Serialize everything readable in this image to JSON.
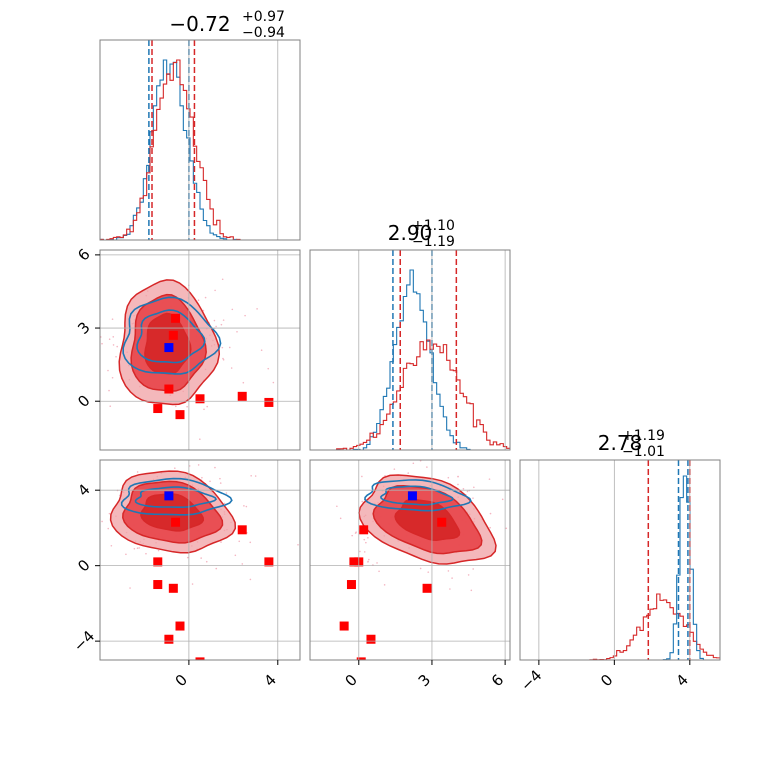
{
  "titles": {
    "p1": {
      "main": "−0.72",
      "sup": "+0.97",
      "sub": "−0.94"
    },
    "p2": {
      "main": "2.90",
      "sup": "+1.10",
      "sub": "−1.19"
    },
    "p3": {
      "main": "2.78",
      "sup": "+1.19",
      "sub": "−1.01"
    }
  },
  "chart_data": {
    "type": "corner",
    "parameters": [
      "p1",
      "p2",
      "p3"
    ],
    "colors": {
      "red": "#d62728",
      "blue": "#1f77b4",
      "marker_red": "#ff0000",
      "marker_blue": "#0000ff"
    },
    "ranges": {
      "p1": [
        -4.0,
        5.0
      ],
      "p2": [
        -2.0,
        6.2
      ],
      "p3": [
        -5.0,
        5.6
      ]
    },
    "panels": [
      {
        "id": "hist_p1",
        "type": "histogram",
        "x": "p1",
        "x_ticks": [
          0,
          4
        ],
        "red_lines": [
          -1.66,
          0.25
        ],
        "blue_lines": [
          -1.8,
          0.0
        ]
      },
      {
        "id": "scatter_p1_p2",
        "type": "contour_scatter",
        "x": "p1",
        "y": "p2",
        "x_ticks": [
          0,
          4
        ],
        "y_ticks": [
          0,
          3,
          6
        ],
        "y_tick_labels": [
          "0",
          "3",
          "6"
        ],
        "red_markers": [
          [
            -0.6,
            3.4
          ],
          [
            -0.7,
            2.7
          ],
          [
            -0.9,
            0.5
          ],
          [
            0.5,
            0.1
          ],
          [
            -1.4,
            -0.3
          ],
          [
            -0.4,
            -0.55
          ],
          [
            2.4,
            0.2
          ],
          [
            3.6,
            -0.05
          ]
        ],
        "blue_marker": [
          -0.9,
          2.2
        ],
        "red_contour_center": [
          -1.0,
          2.3
        ],
        "blue_contour_center": [
          -0.9,
          2.6
        ]
      },
      {
        "id": "hist_p2",
        "type": "histogram",
        "x": "p2",
        "x_ticks": [
          0,
          3,
          6
        ],
        "red_lines": [
          1.7,
          4.0
        ],
        "blue_lines": [
          1.4,
          3.0
        ]
      },
      {
        "id": "scatter_p1_p3",
        "type": "contour_scatter",
        "x": "p1",
        "y": "p3",
        "x_ticks": [
          0,
          4
        ],
        "x_tick_labels": [
          "0",
          "4"
        ],
        "y_ticks": [
          -4,
          0,
          4
        ],
        "y_tick_labels": [
          "−4",
          "0",
          "4"
        ],
        "red_markers": [
          [
            -0.6,
            2.3
          ],
          [
            2.4,
            1.9
          ],
          [
            3.6,
            0.2
          ],
          [
            -1.4,
            0.2
          ],
          [
            -1.4,
            -1.0
          ],
          [
            -0.7,
            -1.2
          ],
          [
            -0.4,
            -3.2
          ],
          [
            -0.9,
            -3.9
          ],
          [
            0.5,
            -5.1
          ]
        ],
        "blue_marker": [
          -0.9,
          3.7
        ],
        "red_contour_center": [
          -0.8,
          2.8
        ],
        "blue_contour_center": [
          -0.7,
          3.6
        ]
      },
      {
        "id": "scatter_p2_p3",
        "type": "contour_scatter",
        "x": "p2",
        "y": "p3",
        "x_ticks": [
          0,
          3,
          6
        ],
        "x_tick_labels": [
          "0",
          "3",
          "6"
        ],
        "y_ticks": [
          -4,
          0,
          4
        ],
        "red_markers": [
          [
            3.4,
            2.3
          ],
          [
            0.2,
            1.9
          ],
          [
            -0.2,
            0.2
          ],
          [
            0.0,
            0.2
          ],
          [
            -0.3,
            -1.0
          ],
          [
            2.8,
            -1.2
          ],
          [
            -0.6,
            -3.2
          ],
          [
            0.5,
            -3.9
          ],
          [
            0.1,
            -5.1
          ]
        ],
        "blue_marker": [
          2.2,
          3.7
        ],
        "red_contour_center": [
          2.8,
          2.4
        ],
        "blue_contour_center": [
          2.3,
          3.7
        ]
      },
      {
        "id": "hist_p3",
        "type": "histogram",
        "x": "p3",
        "x_ticks": [
          -4,
          0,
          4
        ],
        "x_tick_labels": [
          "−4",
          "0",
          "4"
        ],
        "red_lines": [
          1.8,
          4.0
        ],
        "blue_lines": [
          3.4,
          3.9
        ]
      }
    ]
  }
}
